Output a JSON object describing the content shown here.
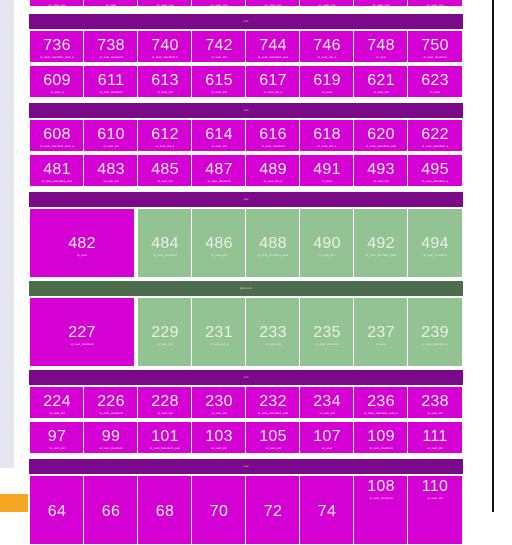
{
  "colors": {
    "magenta": "#d400d4",
    "green": "#93c393",
    "separator": "#7b0a8a",
    "separator_green": "#4d6b4d",
    "accent": "#f5a623"
  },
  "top_strip": [
    "sc_seat_row",
    "sc_seat",
    "sc_seat_row",
    "sc_seat_row",
    "sc_seat_row",
    "sc_seat_row",
    "sc_seat_row",
    "sc_seat_row"
  ],
  "separators": [
    "row",
    "row",
    "row",
    "Entrance",
    "row",
    "row"
  ],
  "rows": [
    {
      "top": [
        {
          "n": "736",
          "s": "st_seat_standard_seat_a"
        },
        {
          "n": "738",
          "s": "st_seat_standard"
        },
        {
          "n": "740",
          "s": "st_seat_standard_b"
        },
        {
          "n": "742",
          "s": "st_seat_std"
        },
        {
          "n": "744",
          "s": "st_seat_standard_seat"
        },
        {
          "n": "746",
          "s": "st_seat_std_a"
        },
        {
          "n": "748",
          "s": "st_seat"
        },
        {
          "n": "750",
          "s": "st_seat_standard"
        }
      ],
      "bottom": [
        {
          "n": "609",
          "s": "st_seat_a"
        },
        {
          "n": "611",
          "s": "st_seat_standard"
        },
        {
          "n": "613",
          "s": "st_seat_std"
        },
        {
          "n": "615",
          "s": "st_seat_std"
        },
        {
          "n": "617",
          "s": "st_seat_std_a"
        },
        {
          "n": "619",
          "s": "st_seat"
        },
        {
          "n": "621",
          "s": "st_seat_std"
        },
        {
          "n": "623",
          "s": "st_seat"
        }
      ]
    },
    {
      "top": [
        {
          "n": "608",
          "s": "st_seat_standard_seat_a"
        },
        {
          "n": "610",
          "s": "st_seat_std"
        },
        {
          "n": "612",
          "s": "st_seat_std_b"
        },
        {
          "n": "614",
          "s": "st_seat_std"
        },
        {
          "n": "616",
          "s": "st_seat_standard"
        },
        {
          "n": "618",
          "s": "st_seat_std_a"
        },
        {
          "n": "620",
          "s": "st_seat_standard_seat"
        },
        {
          "n": "622",
          "s": "st_seat_standard_a"
        }
      ],
      "bottom": [
        {
          "n": "481",
          "s": "st_seat_standard_seat"
        },
        {
          "n": "483",
          "s": "st_seat_std"
        },
        {
          "n": "485",
          "s": "st_seat_std"
        },
        {
          "n": "487",
          "s": "st_seat_standard"
        },
        {
          "n": "489",
          "s": "st_seat_std_a"
        },
        {
          "n": "491",
          "s": "st_seat"
        },
        {
          "n": "493",
          "s": "st_seat_std"
        },
        {
          "n": "495",
          "s": "st_seat_standard_a"
        }
      ]
    },
    {
      "first": {
        "n": "482",
        "s": "st_seat"
      },
      "green": [
        {
          "n": "484",
          "s": "st_seat_standard"
        },
        {
          "n": "486",
          "s": "st_seat_std"
        },
        {
          "n": "488",
          "s": "st_seat_standard_seat"
        },
        {
          "n": "490",
          "s": "st_seat_std"
        },
        {
          "n": "492",
          "s": "st_seat_standard_seat"
        },
        {
          "n": "494",
          "s": "st_seat_standard"
        }
      ]
    },
    {
      "first": {
        "n": "227",
        "s": "st_seat_standard"
      },
      "green": [
        {
          "n": "229",
          "s": "st_seat_std"
        },
        {
          "n": "231",
          "s": "st_seat_std_a"
        },
        {
          "n": "233",
          "s": "st_seat_std"
        },
        {
          "n": "235",
          "s": "st_seat_standard"
        },
        {
          "n": "237",
          "s": "st_seat"
        },
        {
          "n": "239",
          "s": "st_seat_standard_a"
        }
      ]
    },
    {
      "top": [
        {
          "n": "224",
          "s": "st_seat_std"
        },
        {
          "n": "226",
          "s": "st_seat_standard"
        },
        {
          "n": "228",
          "s": "st_seat_std"
        },
        {
          "n": "230",
          "s": "st_seat_std"
        },
        {
          "n": "232",
          "s": "st_seat_standard_seat"
        },
        {
          "n": "234",
          "s": "st_seat_std"
        },
        {
          "n": "236",
          "s": "st_seat_standard_seat_a"
        },
        {
          "n": "238",
          "s": "st_seat_std"
        }
      ],
      "bottom": [
        {
          "n": "97",
          "s": "st_seat_std"
        },
        {
          "n": "99",
          "s": "st_seat_standard"
        },
        {
          "n": "101",
          "s": "st_seat_standard_seat"
        },
        {
          "n": "103",
          "s": "st_seat_std"
        },
        {
          "n": "105",
          "s": "st_seat_std"
        },
        {
          "n": "107",
          "s": "st_seat"
        },
        {
          "n": "109",
          "s": "st_seat_standard"
        },
        {
          "n": "111",
          "s": "st_seat_std"
        }
      ]
    },
    {
      "top": [
        {
          "n": "64",
          "s": ""
        },
        {
          "n": "66",
          "s": ""
        },
        {
          "n": "68",
          "s": ""
        },
        {
          "n": "70",
          "s": ""
        },
        {
          "n": "72",
          "s": ""
        },
        {
          "n": "74",
          "s": ""
        },
        {
          "n": "108",
          "s": "st_seat_standard"
        },
        {
          "n": "110",
          "s": "st_seat_std"
        }
      ]
    }
  ]
}
